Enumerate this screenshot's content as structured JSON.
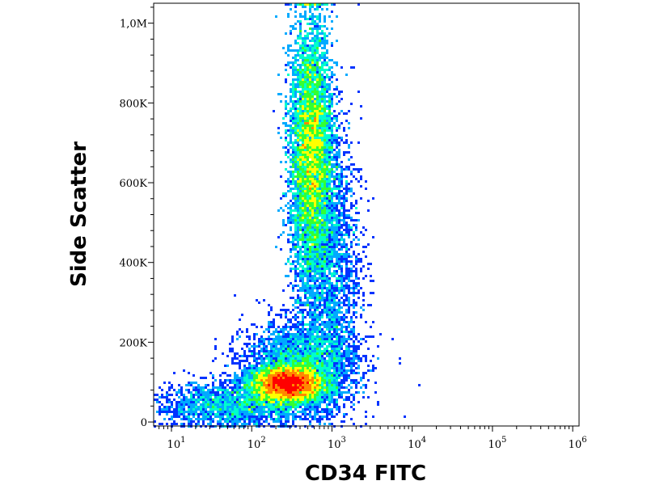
{
  "chart_data": {
    "type": "heatmap",
    "subtype": "flow-cytometry-density-dot-plot",
    "xlabel": "CD34 FITC",
    "ylabel": "Side Scatter",
    "x_scale": "log",
    "x_range": [
      6,
      1200000
    ],
    "y_range": [
      -10000,
      1050000
    ],
    "x_ticks": [
      {
        "value": 10,
        "base": "10",
        "exp": "1"
      },
      {
        "value": 100,
        "base": "10",
        "exp": "2"
      },
      {
        "value": 1000,
        "base": "10",
        "exp": "3"
      },
      {
        "value": 10000,
        "base": "10",
        "exp": "4"
      },
      {
        "value": 100000,
        "base": "10",
        "exp": "5"
      },
      {
        "value": 1000000,
        "base": "10",
        "exp": "6"
      }
    ],
    "y_ticks": [
      {
        "value": 0,
        "label": "0"
      },
      {
        "value": 200000,
        "label": "200K"
      },
      {
        "value": 400000,
        "label": "400K"
      },
      {
        "value": 600000,
        "label": "600K"
      },
      {
        "value": 800000,
        "label": "800K"
      },
      {
        "value": 1000000,
        "label": "1,0M"
      }
    ],
    "colormap": [
      "#0000aa",
      "#0033ff",
      "#00aaff",
      "#00ffcc",
      "#33ff33",
      "#ffff00",
      "#ff8800",
      "#ff0000"
    ],
    "populations": [
      {
        "center_x": 280,
        "center_y": 95000,
        "spread_logx": 0.22,
        "spread_y": 22000,
        "weight": 0.32
      },
      {
        "center_x": 400,
        "center_y": 140000,
        "spread_logx": 0.35,
        "spread_y": 55000,
        "weight": 0.12
      },
      {
        "center_x": 550,
        "center_y": 680000,
        "spread_logx": 0.13,
        "spread_y": 160000,
        "weight": 0.38
      },
      {
        "center_x": 900,
        "center_y": 400000,
        "spread_logx": 0.2,
        "spread_y": 180000,
        "weight": 0.1
      },
      {
        "center_x": 60,
        "center_y": 40000,
        "spread_logx": 0.5,
        "spread_y": 30000,
        "weight": 0.08
      }
    ]
  }
}
